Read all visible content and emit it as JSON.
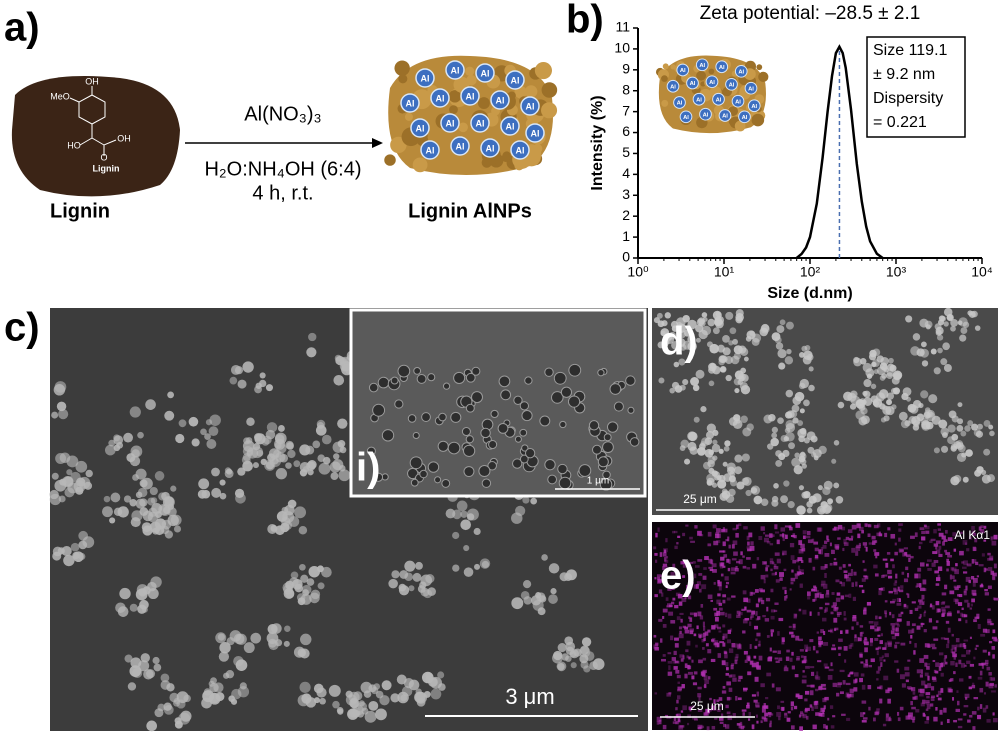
{
  "panel_a": {
    "label": "a)",
    "reactant": "Lignin",
    "structure_labels": [
      "OH",
      "MeO",
      "HO",
      "OH",
      "O",
      "Lignin"
    ],
    "reagent": "Al(NO₃)₃",
    "conditions": [
      "H₂O:NH₄OH (6:4)",
      "4 h, r.t."
    ],
    "product": "Lignin AlNPs",
    "particle_label": "Al"
  },
  "panel_b": {
    "label": "b)"
  },
  "chart_data": {
    "type": "line",
    "title": "Zeta potential: –28.5 ± 2.1",
    "x_label": "Size (d.nm)",
    "y_label": "Intensity (%)",
    "log_x": true,
    "xlim": [
      1,
      10000
    ],
    "xticks": [
      {
        "value": 1,
        "label": "10⁰"
      },
      {
        "value": 10,
        "label": "10¹"
      },
      {
        "value": 100,
        "label": "10²"
      },
      {
        "value": 1000,
        "label": "10³"
      },
      {
        "value": 10000,
        "label": "10⁴"
      }
    ],
    "ylim": [
      0,
      11
    ],
    "yticks": [
      0,
      1,
      2,
      3,
      4,
      5,
      6,
      7,
      8,
      9,
      10,
      11
    ],
    "x": [
      70,
      80,
      90,
      100,
      120,
      140,
      160,
      180,
      200,
      220,
      240,
      260,
      300,
      350,
      400,
      450,
      500,
      600,
      700
    ],
    "values": [
      0,
      0.2,
      0.5,
      1.0,
      2.6,
      4.8,
      7.0,
      8.7,
      9.8,
      10.1,
      9.8,
      9.1,
      7.1,
      4.5,
      2.7,
      1.5,
      0.8,
      0.2,
      0
    ],
    "color": "#000000",
    "marker_x": 220,
    "marker_color": "#4a6fb0",
    "annotation": [
      "Size 119.1",
      "± 9.2 nm",
      "Dispersity",
      "= 0.221"
    ]
  },
  "panel_c": {
    "label": "c)",
    "inset_label": "i)",
    "inset_scale": "1 μm",
    "scale": "3 μm"
  },
  "panel_d": {
    "label": "d)",
    "scale": "25 μm"
  },
  "panel_e": {
    "label": "e)",
    "map_label": "Al Kα1",
    "scale": "25 μm"
  }
}
